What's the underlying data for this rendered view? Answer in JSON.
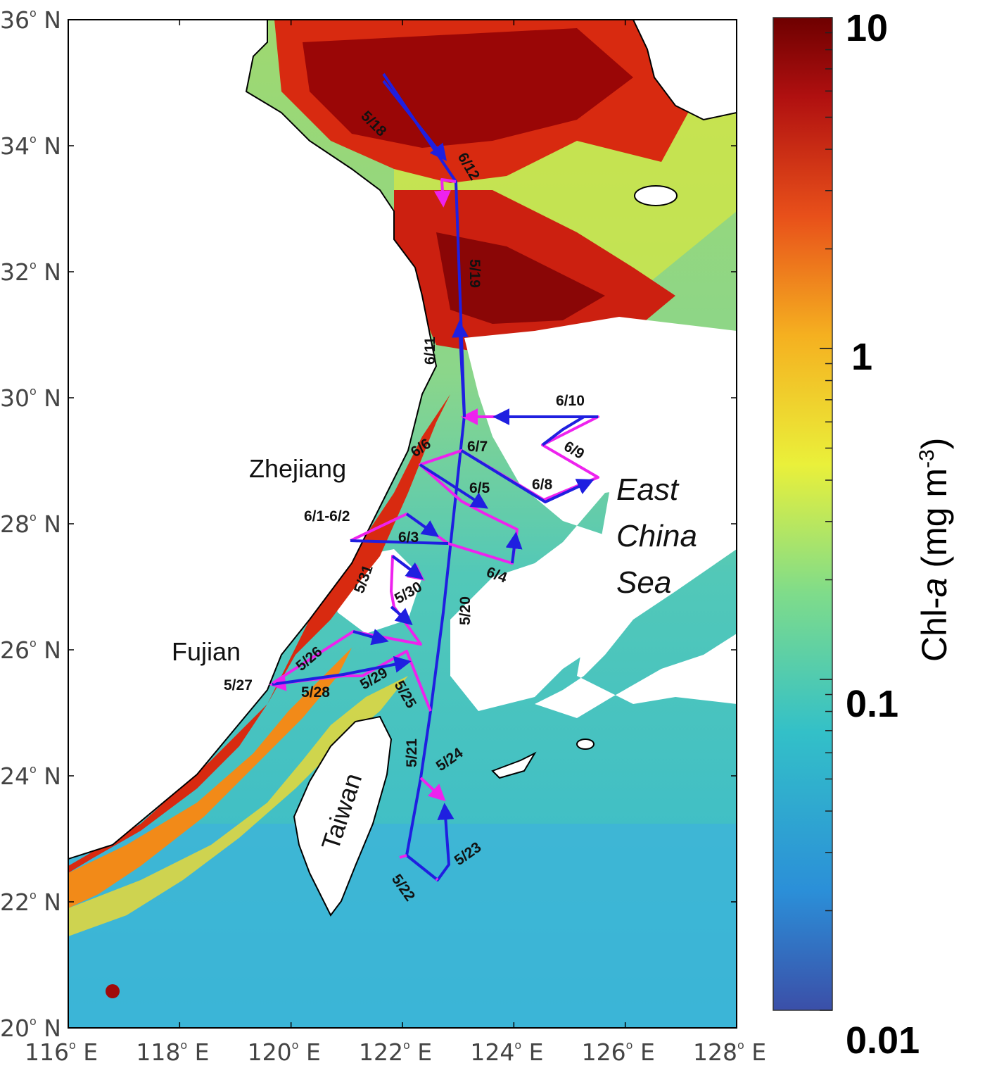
{
  "map": {
    "lat_ticks": [
      "36",
      "34",
      "32",
      "30",
      "28",
      "26",
      "24",
      "22",
      "20"
    ],
    "lon_ticks": [
      "116",
      "118",
      "120",
      "122",
      "124",
      "126",
      "128"
    ],
    "lat_suffix": "N",
    "lon_suffix": "E",
    "degree_symbol": "o",
    "lat_range": [
      20,
      36
    ],
    "lon_range": [
      116,
      128
    ]
  },
  "labels": {
    "zhejiang": "Zhejiang",
    "fujian": "Fujian",
    "taiwan": "Taiwan",
    "sea_line1": "East",
    "sea_line2": "China",
    "sea_line3": "Sea"
  },
  "colorbar": {
    "tick_max": "10",
    "tick_1": "1",
    "tick_01": "0.1",
    "tick_min": "0.01",
    "label_prefix": "Chl-",
    "label_var": "a",
    "label_units_open": " (mg m",
    "label_units_exp": "-3",
    "label_units_close": ")",
    "scale": "log",
    "range": [
      0.01,
      10
    ],
    "colormap": [
      "#3b4fa8",
      "#2b8fd8",
      "#33c0c8",
      "#7fdc8a",
      "#eaf03a",
      "#f5b020",
      "#e8501a",
      "#b01010",
      "#6e0000"
    ]
  },
  "dates": {
    "d518": "5/18",
    "d612": "6/12",
    "d519": "5/19",
    "d611": "6/11",
    "d610": "6/10",
    "d69": "6/9",
    "d66": "6/6",
    "d67": "6/7",
    "d68": "6/8",
    "d65": "6/5",
    "d612b": "6/1-6/2",
    "d63": "6/3",
    "d64": "6/4",
    "d531": "5/31",
    "d530": "5/30",
    "d520": "5/20",
    "d526": "5/26",
    "d527": "5/27",
    "d528": "5/28",
    "d529": "5/29",
    "d525": "5/25",
    "d521": "5/21",
    "d524": "5/24",
    "d523": "5/23",
    "d522": "5/22"
  },
  "colors": {
    "outbound_track": "#1f1fe0",
    "return_track": "#ee22ee",
    "coastline": "#000000"
  }
}
